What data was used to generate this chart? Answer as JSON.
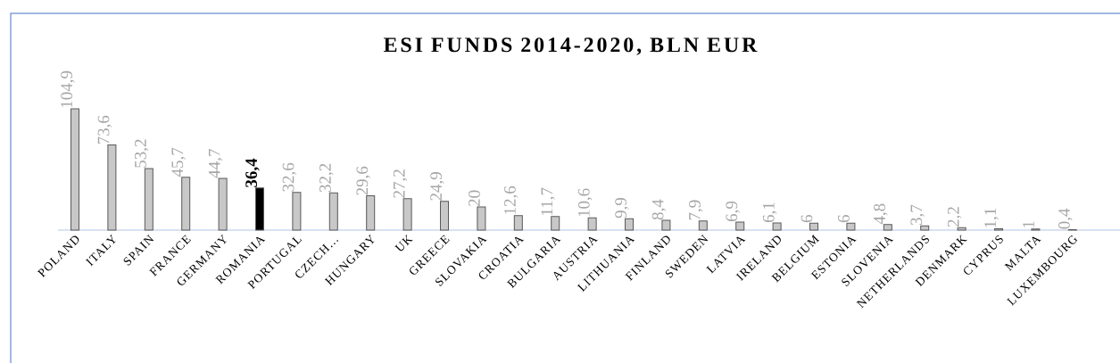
{
  "chart_data": {
    "type": "bar",
    "title": "ESI FUNDS 2014-2020, BLN EUR",
    "categories": [
      "POLAND",
      "ITALY",
      "SPAIN",
      "FRANCE",
      "GERMANY",
      "ROMANIA",
      "PORTUGAL",
      "CZECH…",
      "HUNGARY",
      "UK",
      "GREECE",
      "SLOVAKIA",
      "CROATIA",
      "BULGARIA",
      "AUSTRIA",
      "LITHUANIA",
      "FINLAND",
      "SWEDEN",
      "LATVIA",
      "IRELAND",
      "BELGIUM",
      "ESTONIA",
      "SLOVENIA",
      "NETHERLANDS",
      "DENMARK",
      "CYPRUS",
      "MALTA",
      "LUXEMBOURG"
    ],
    "values": [
      104.9,
      73.6,
      53.2,
      45.7,
      44.7,
      36.4,
      32.6,
      32.2,
      29.6,
      27.2,
      24.9,
      20,
      12.6,
      11.7,
      10.6,
      9.9,
      8.4,
      7.9,
      6.9,
      6.1,
      6,
      6,
      4.8,
      3.7,
      2.2,
      1.1,
      1,
      0.4
    ],
    "value_labels": [
      "104,9",
      "73,6",
      "53,2",
      "45,7",
      "44,7",
      "36,4",
      "32,6",
      "32,2",
      "29,6",
      "27,2",
      "24,9",
      "20",
      "12,6",
      "11,7",
      "10,6",
      "9,9",
      "8,4",
      "7,9",
      "6,9",
      "6,1",
      "6",
      "6",
      "4,8",
      "3,7",
      "2,2",
      "1,1",
      "1",
      "0,4"
    ],
    "colors": [
      "#c8c8c8",
      "#c8c8c8",
      "#c8c8c8",
      "#c8c8c8",
      "#c8c8c8",
      "#000000",
      "#c8c8c8",
      "#c8c8c8",
      "#c8c8c8",
      "#c8c8c8",
      "#c8c8c8",
      "#c8c8c8",
      "#c8c8c8",
      "#c8c8c8",
      "#c8c8c8",
      "#c8c8c8",
      "#c8c8c8",
      "#c8c8c8",
      "#c8c8c8",
      "#c8c8c8",
      "#c8c8c8",
      "#c8c8c8",
      "#c8c8c8",
      "#c8c8c8",
      "#c8c8c8",
      "#c8c8c8",
      "#c8c8c8",
      "#c8c8c8"
    ]
  }
}
